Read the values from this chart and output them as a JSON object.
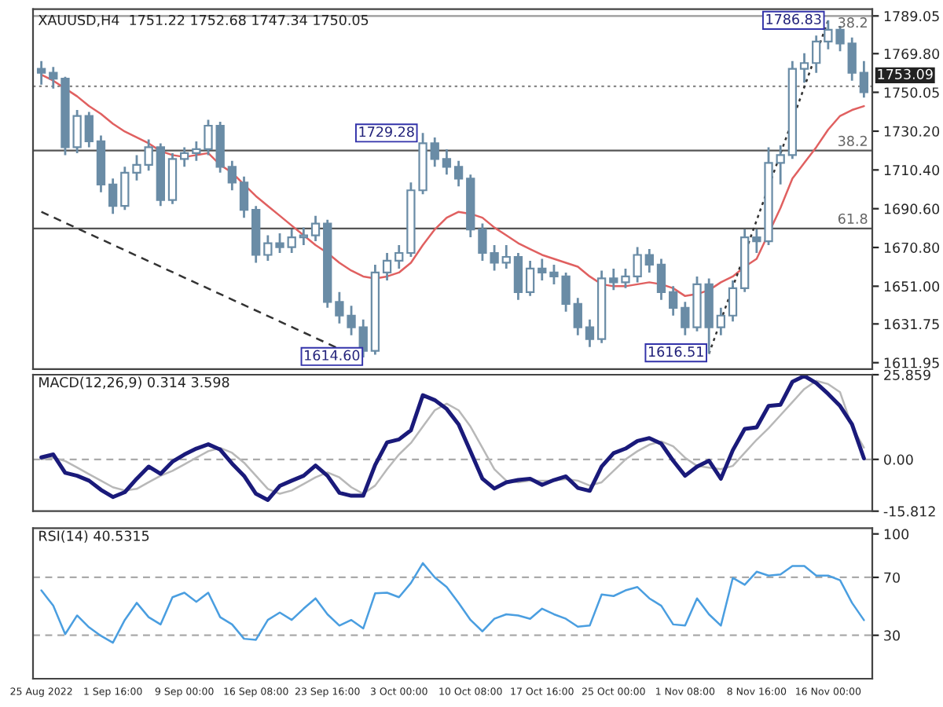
{
  "chart_data": [
    {
      "type": "candlestick",
      "title": "XAUUSD,H4  1751.22 1752.68 1747.34 1750.05",
      "color": "#6a8ca6",
      "tick_labels": "y",
      "categories": [
        null,
        null,
        null,
        null,
        null,
        null,
        null,
        null,
        null,
        null,
        null,
        null,
        null,
        null,
        null,
        null,
        null,
        null,
        null,
        null,
        null,
        null,
        null,
        null,
        null,
        null,
        null,
        null,
        null,
        null,
        null,
        null,
        null,
        null,
        null,
        null,
        null,
        null,
        null,
        null,
        null,
        null,
        null,
        null,
        null,
        null,
        null,
        null,
        null,
        null,
        null,
        null,
        null,
        null,
        null,
        null,
        null,
        null,
        null,
        null,
        null,
        null,
        null,
        null,
        null,
        null,
        null,
        null,
        null,
        null
      ],
      "ohlc": [
        [
          1762,
          1766,
          1754,
          1760
        ],
        [
          1760,
          1763,
          1752,
          1757
        ],
        [
          1757,
          1758,
          1718,
          1722
        ],
        [
          1722,
          1741,
          1719,
          1738
        ],
        [
          1738,
          1740,
          1722,
          1725
        ],
        [
          1725,
          1728,
          1699,
          1703
        ],
        [
          1703,
          1706,
          1688,
          1692
        ],
        [
          1692,
          1712,
          1690,
          1709
        ],
        [
          1709,
          1718,
          1705,
          1713
        ],
        [
          1713,
          1726,
          1710,
          1722
        ],
        [
          1722,
          1724,
          1692,
          1695
        ],
        [
          1695,
          1719,
          1693,
          1716
        ],
        [
          1716,
          1722,
          1712,
          1719
        ],
        [
          1719,
          1725,
          1715,
          1721
        ],
        [
          1721,
          1736,
          1718,
          1733
        ],
        [
          1733,
          1735,
          1709,
          1712
        ],
        [
          1712,
          1715,
          1700,
          1704
        ],
        [
          1704,
          1707,
          1686,
          1690
        ],
        [
          1690,
          1692,
          1663,
          1667
        ],
        [
          1667,
          1677,
          1664,
          1673
        ],
        [
          1673,
          1678,
          1668,
          1671
        ],
        [
          1671,
          1680,
          1668,
          1676
        ],
        [
          1676,
          1681,
          1672,
          1677
        ],
        [
          1677,
          1687,
          1674,
          1683
        ],
        [
          1683,
          1685,
          1640,
          1643
        ],
        [
          1643,
          1648,
          1632,
          1636
        ],
        [
          1636,
          1641,
          1626,
          1630
        ],
        [
          1630,
          1634,
          1614.6,
          1618
        ],
        [
          1618,
          1662,
          1616,
          1658
        ],
        [
          1658,
          1668,
          1654,
          1664
        ],
        [
          1664,
          1672,
          1660,
          1668
        ],
        [
          1668,
          1704,
          1666,
          1700
        ],
        [
          1700,
          1729.28,
          1698,
          1724
        ],
        [
          1724,
          1727,
          1712,
          1716
        ],
        [
          1716,
          1721,
          1708,
          1712
        ],
        [
          1712,
          1715,
          1702,
          1706
        ],
        [
          1706,
          1708,
          1676,
          1680
        ],
        [
          1680,
          1683,
          1664,
          1668
        ],
        [
          1668,
          1672,
          1659,
          1663
        ],
        [
          1663,
          1672,
          1660,
          1666
        ],
        [
          1666,
          1668,
          1644,
          1648
        ],
        [
          1648,
          1664,
          1646,
          1660
        ],
        [
          1660,
          1665,
          1654,
          1658
        ],
        [
          1658,
          1662,
          1652,
          1656
        ],
        [
          1656,
          1658,
          1638,
          1642
        ],
        [
          1642,
          1645,
          1626,
          1630
        ],
        [
          1630,
          1634,
          1620,
          1624
        ],
        [
          1624,
          1659,
          1622,
          1655
        ],
        [
          1655,
          1660,
          1649,
          1653
        ],
        [
          1653,
          1660,
          1650,
          1656
        ],
        [
          1656,
          1671,
          1653,
          1667
        ],
        [
          1667,
          1670,
          1658,
          1662
        ],
        [
          1662,
          1665,
          1644,
          1648
        ],
        [
          1648,
          1651,
          1636,
          1640
        ],
        [
          1640,
          1643,
          1626,
          1630
        ],
        [
          1630,
          1656,
          1628,
          1652
        ],
        [
          1652,
          1655,
          1616.51,
          1630
        ],
        [
          1630,
          1640,
          1626,
          1636
        ],
        [
          1636,
          1654,
          1633,
          1650
        ],
        [
          1650,
          1680,
          1648,
          1676
        ],
        [
          1676,
          1680,
          1668,
          1674
        ],
        [
          1674,
          1722,
          1672,
          1714
        ],
        [
          1714,
          1723,
          1703,
          1718
        ],
        [
          1718,
          1766,
          1716,
          1762
        ],
        [
          1762,
          1770,
          1755,
          1765
        ],
        [
          1765,
          1779,
          1760,
          1776
        ],
        [
          1776,
          1786.83,
          1772,
          1782
        ],
        [
          1782,
          1784,
          1771,
          1775
        ],
        [
          1775,
          1778,
          1756,
          1760
        ],
        [
          1760,
          1766,
          1747.34,
          1750.05
        ]
      ],
      "series": [
        {
          "type": "line",
          "color": "#e06060",
          "line_style": "solid",
          "values": [
            1759,
            1756,
            1752,
            1748,
            1743,
            1739,
            1734,
            1730,
            1727,
            1724,
            1720,
            1718,
            1717,
            1718,
            1719,
            1713,
            1709,
            1703,
            1697,
            1692,
            1687,
            1682,
            1677,
            1672,
            1668,
            1663,
            1659,
            1656,
            1655,
            1656,
            1658,
            1663,
            1672,
            1680,
            1686,
            1689,
            1688,
            1686,
            1681,
            1677,
            1673,
            1670,
            1667,
            1665,
            1663,
            1661,
            1656,
            1652,
            1651,
            1651,
            1652,
            1653,
            1652,
            1650,
            1646,
            1647,
            1649,
            1653,
            1656,
            1661,
            1665,
            null,
            1691,
            1706,
            1714,
            1722,
            1731,
            1738,
            1741,
            1743
          ]
        },
        {
          "type": "line",
          "color": "#333333",
          "line_style": "dashed",
          "values": [
            1689,
            null,
            null,
            null,
            null,
            null,
            null,
            null,
            null,
            null,
            null,
            null,
            null,
            null,
            null,
            null,
            null,
            null,
            null,
            null,
            null,
            null,
            null,
            null,
            null,
            1619,
            null,
            null,
            null,
            null,
            null,
            null,
            null,
            null,
            null,
            null,
            null,
            null,
            null,
            null,
            null,
            null,
            null,
            null,
            null,
            null,
            null,
            null,
            null,
            null,
            null,
            null,
            null,
            null,
            null,
            null,
            null,
            null,
            null,
            null,
            null,
            null,
            null,
            null,
            null,
            null,
            null,
            null,
            null,
            null
          ]
        },
        {
          "type": "line",
          "color": "#333333",
          "line_style": "dotted",
          "values": [
            null,
            null,
            null,
            null,
            null,
            null,
            null,
            null,
            null,
            null,
            null,
            null,
            null,
            null,
            null,
            null,
            null,
            null,
            null,
            null,
            null,
            null,
            null,
            null,
            null,
            null,
            null,
            null,
            null,
            null,
            null,
            null,
            null,
            null,
            null,
            null,
            null,
            null,
            null,
            null,
            null,
            null,
            null,
            null,
            null,
            null,
            null,
            null,
            null,
            null,
            null,
            null,
            null,
            null,
            null,
            null,
            1616.51,
            null,
            null,
            null,
            null,
            null,
            null,
            null,
            null,
            null,
            1786.83,
            null,
            null,
            null
          ]
        }
      ],
      "ylim": [
        1608.7,
        1792.5
      ],
      "yticks": [
        1789.05,
        {
          "value": 1769.8,
          "label": "1769.80"
        },
        1750.05,
        {
          "value": 1730.2,
          "label": "1730.20"
        },
        {
          "value": 1710.4,
          "label": "1710.40"
        },
        {
          "value": 1690.6,
          "label": "1690.60"
        },
        {
          "value": 1670.8,
          "label": "1670.80"
        },
        {
          "value": 1651,
          "label": "1651.00"
        },
        1631.75,
        1611.95
      ],
      "ref_lines": [
        {
          "axis": "y",
          "value": 1753.09,
          "label": "1753.09",
          "color": "#888888",
          "line_style": "dotted"
        },
        {
          "axis": "y",
          "value": 1789,
          "color": "#999999",
          "line_style": "solid"
        },
        {
          "axis": "y",
          "value": 1720.3,
          "color": "#555555",
          "line_style": "solid"
        },
        {
          "axis": "y",
          "value": 1680.5,
          "color": "#555555",
          "line_style": "solid"
        }
      ],
      "annotations": [
        "1614.60",
        "1729.28",
        "1616.51",
        "1786.83",
        "38.2",
        "38.2",
        "61.8"
      ]
    },
    {
      "type": "line",
      "title": "MACD(12,26,9) 0.314 3.598",
      "tick_labels": "y",
      "categories": [
        null,
        null,
        null,
        null,
        null,
        null,
        null,
        null,
        null,
        null,
        null,
        null,
        null,
        null,
        null,
        null,
        null,
        null,
        null,
        null,
        null,
        null,
        null,
        null,
        null,
        null,
        null,
        null,
        null,
        null,
        null,
        null,
        null,
        null,
        null,
        null,
        null,
        null,
        null,
        null,
        null,
        null,
        null,
        null,
        null,
        null,
        null,
        null,
        null,
        null,
        null,
        null,
        null,
        null,
        null,
        null,
        null,
        null,
        null,
        null,
        null,
        null,
        null,
        null,
        null,
        null,
        null,
        null,
        null,
        null
      ],
      "series": [
        {
          "color": "#b8b8b8",
          "values": [
            0.0,
            0.5,
            -0.5,
            -2.5,
            -4.5,
            -6.5,
            -8.5,
            -9.5,
            -9.0,
            -7.0,
            -5.0,
            -3.5,
            -1.5,
            0.5,
            2.5,
            3.5,
            2.0,
            -1.0,
            -5.0,
            -9.0,
            -10.5,
            -9.5,
            -7.5,
            -5.5,
            -4.0,
            -5.5,
            -8.5,
            -10.5,
            -8.0,
            -3.0,
            1.5,
            5.0,
            10.0,
            15.0,
            17.0,
            15.0,
            10.0,
            3.5,
            -3.0,
            -6.5,
            -7.0,
            -6.5,
            -6.5,
            -6.5,
            -6.0,
            -6.5,
            -8.0,
            -7.0,
            -3.5,
            0.0,
            2.5,
            4.5,
            5.5,
            4.0,
            0.5,
            -2.0,
            -2.5,
            -3.0,
            -2.0,
            2.0,
            6.0,
            9.5,
            13.5,
            17.5,
            21.5,
            24.0,
            23.0,
            20.5,
            10.0,
            3.6
          ]
        },
        {
          "color": "#1a1a7a",
          "values": [
            0.6,
            1.5,
            -4.1,
            -5.0,
            -6.5,
            -9.3,
            -11.5,
            -10.0,
            -5.9,
            -2.2,
            -4.4,
            -0.7,
            1.5,
            3.3,
            4.6,
            3.0,
            -1.3,
            -5.0,
            -10.5,
            -12.4,
            -8.1,
            -6.5,
            -5.0,
            -1.9,
            -5.0,
            -10.2,
            -11.1,
            -11.1,
            -1.7,
            5.2,
            6.1,
            8.9,
            19.6,
            18.1,
            15.4,
            10.7,
            2.4,
            -5.9,
            -8.9,
            -7.0,
            -6.3,
            -5.9,
            -7.8,
            -6.3,
            -5.2,
            -8.7,
            -9.6,
            -2.2,
            1.9,
            3.3,
            5.6,
            6.5,
            4.8,
            -0.4,
            -5.0,
            -2.2,
            -0.4,
            -5.9,
            2.8,
            9.3,
            9.8,
            16.3,
            16.7,
            23.7,
            25.5,
            23.3,
            20.0,
            16.3,
            10.7,
            0.3
          ]
        }
      ],
      "ylim": [
        -15.812,
        25.859
      ],
      "yticks": [
        25.859,
        {
          "value": 0,
          "label": "0.00"
        },
        -15.812
      ],
      "ref_lines": [
        {
          "axis": "y",
          "value": 0,
          "color": "#aaaaaa",
          "line_style": "dashed"
        }
      ]
    },
    {
      "type": "line",
      "title": "RSI(14) 40.5315",
      "categories": [
        "25 Aug 2022",
        null,
        null,
        null,
        null,
        null,
        "1 Sep 16:00",
        null,
        null,
        null,
        null,
        null,
        "9 Sep 00:00",
        null,
        null,
        null,
        null,
        null,
        "16 Sep 08:00",
        null,
        null,
        null,
        null,
        null,
        "23 Sep 16:00",
        null,
        null,
        null,
        null,
        null,
        "3 Oct 00:00",
        null,
        null,
        null,
        null,
        null,
        "10 Oct 08:00",
        null,
        null,
        null,
        null,
        null,
        "17 Oct 16:00",
        null,
        null,
        null,
        null,
        null,
        "25 Oct 00:00",
        null,
        null,
        null,
        null,
        null,
        "1 Nov 08:00",
        null,
        null,
        null,
        null,
        null,
        "8 Nov 16:00",
        null,
        null,
        null,
        null,
        null,
        "16 Nov 00:00",
        null,
        null,
        null
      ],
      "series": [
        {
          "color": "#4a9ee0",
          "values": [
            61.0,
            50.4,
            30.8,
            43.7,
            35.5,
            29.6,
            24.9,
            40.6,
            52.4,
            42.5,
            37.5,
            56.3,
            59.4,
            53.1,
            59.4,
            42.5,
            37.5,
            27.6,
            26.9,
            40.6,
            45.7,
            40.6,
            48.4,
            55.5,
            44.5,
            36.7,
            40.6,
            34.7,
            59.0,
            59.4,
            56.3,
            66.1,
            79.8,
            70.0,
            63.3,
            52.4,
            40.6,
            32.7,
            41.4,
            44.5,
            43.7,
            41.4,
            48.4,
            44.5,
            41.4,
            35.9,
            36.7,
            58.2,
            57.1,
            61.0,
            63.3,
            55.5,
            50.4,
            37.5,
            36.7,
            55.5,
            44.5,
            36.7,
            69.6,
            64.9,
            73.9,
            71.2,
            72.0,
            77.8,
            77.8,
            71.2,
            71.2,
            68.0,
            52.4,
            40.5
          ]
        }
      ],
      "ylim": [
        0,
        104
      ],
      "yticks": [
        100,
        70,
        30
      ],
      "ref_lines": [
        {
          "axis": "y",
          "value": 70,
          "color": "#aaaaaa",
          "line_style": "dashed"
        },
        {
          "axis": "y",
          "value": 30,
          "color": "#aaaaaa",
          "line_style": "dashed"
        }
      ]
    }
  ]
}
